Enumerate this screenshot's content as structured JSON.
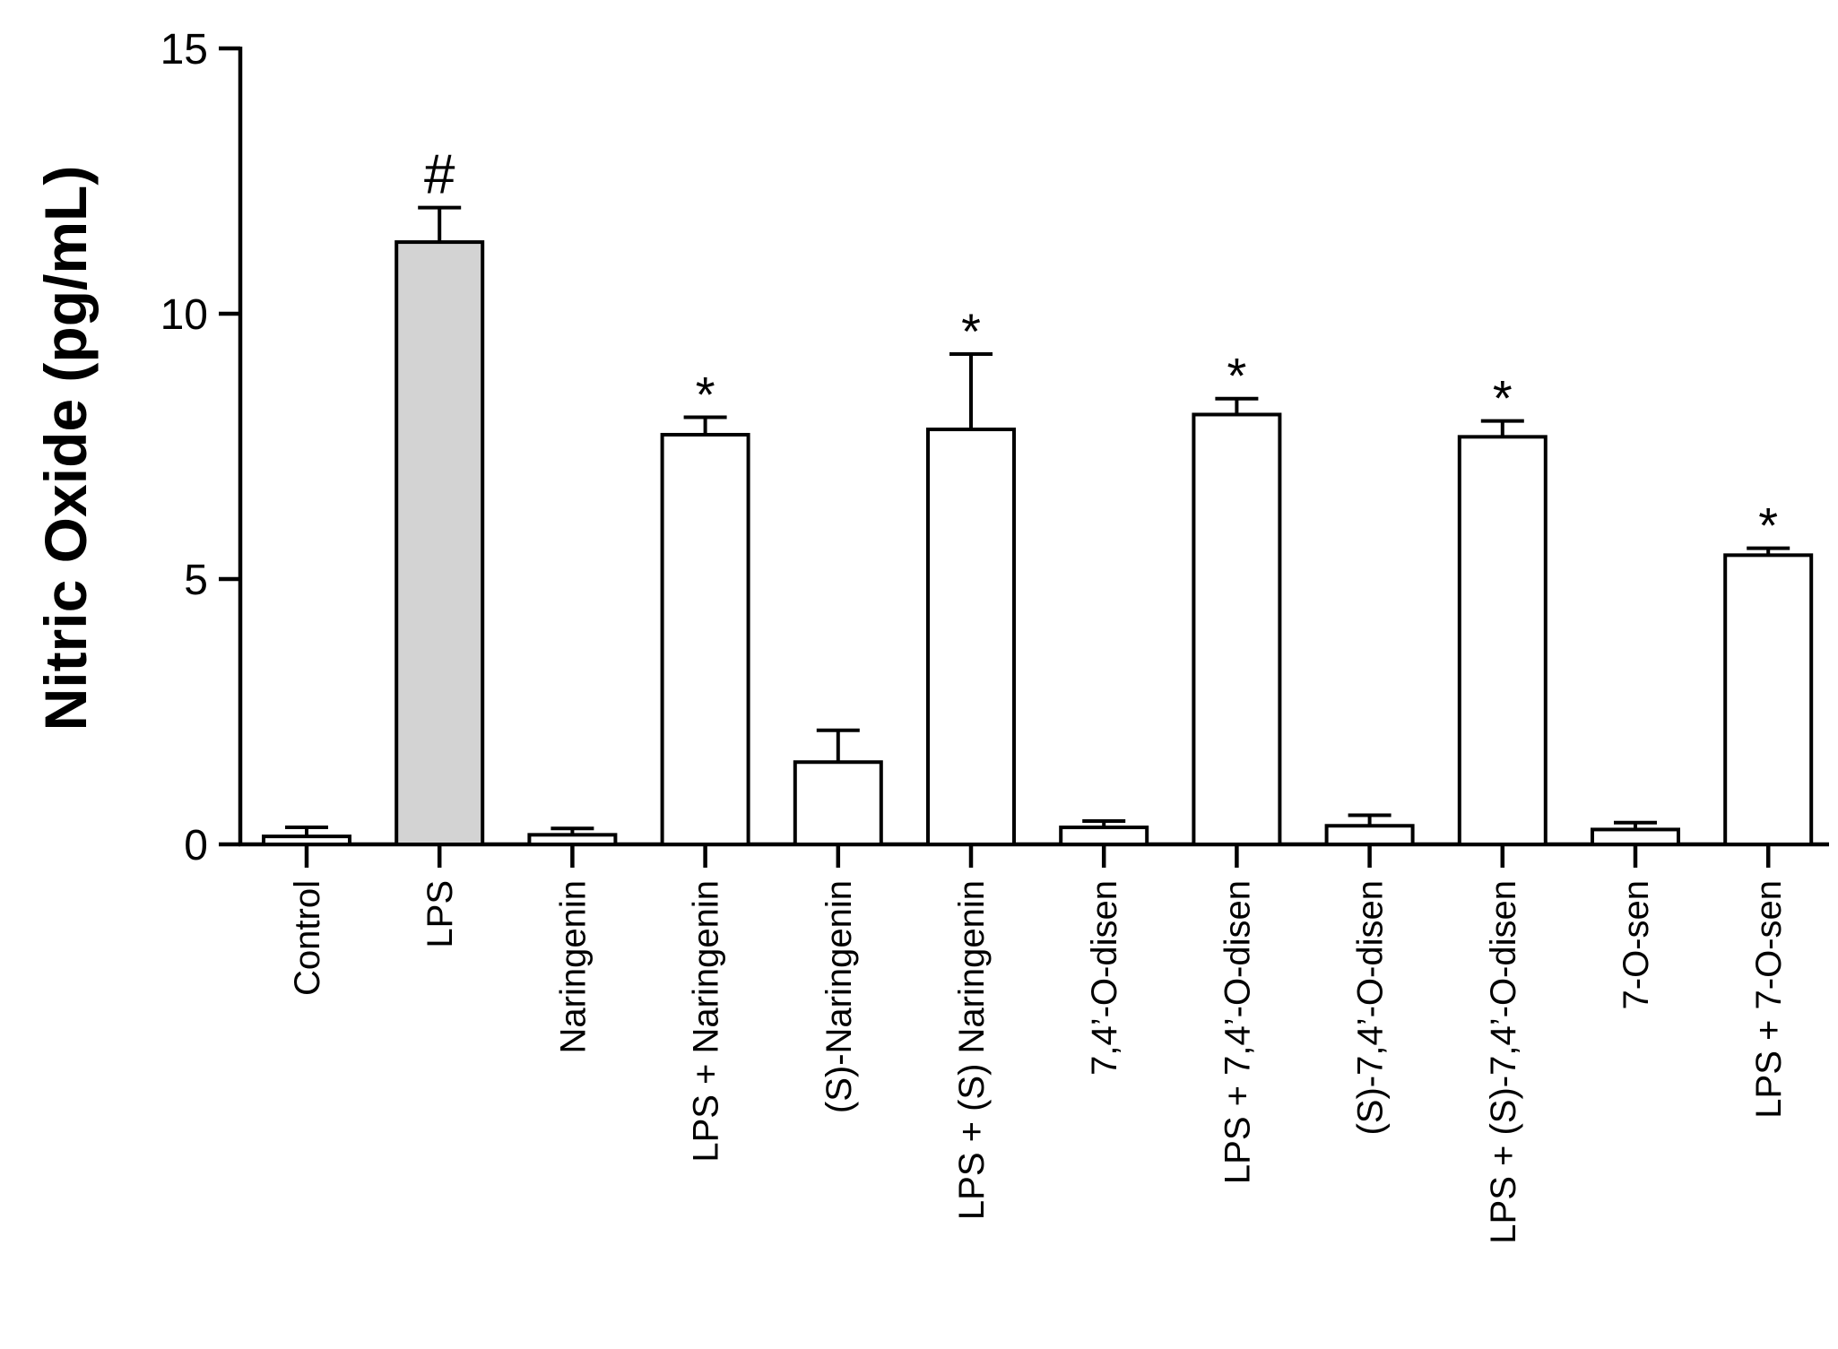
{
  "chart_data": {
    "type": "bar",
    "title": "",
    "xlabel": "",
    "ylabel": "Nitric Oxide (pg/mL)",
    "ylim": [
      0,
      15
    ],
    "yticks": [
      0,
      5,
      10,
      15
    ],
    "grid": false,
    "categories": [
      "Control",
      "LPS",
      "Naringenin",
      "LPS + Naringenin",
      "(S)-Naringenin",
      "LPS + (S) Naringenin",
      "7,4’-O-disen",
      "LPS + 7,4’-O-disen",
      "(S)-7,4’-O-disen",
      "LPS + (S)-7,4’-O-disen",
      "7-O-sen",
      "LPS + 7-O-sen"
    ],
    "values": [
      0.15,
      11.35,
      0.18,
      7.72,
      1.55,
      7.82,
      0.32,
      8.1,
      0.35,
      7.68,
      0.28,
      5.45
    ],
    "errors": [
      0.17,
      0.65,
      0.12,
      0.33,
      0.6,
      1.42,
      0.12,
      0.3,
      0.2,
      0.3,
      0.13,
      0.13
    ],
    "annotations": [
      "",
      "#",
      "",
      "*",
      "",
      "*",
      "",
      "*",
      "",
      "*",
      "",
      "*"
    ],
    "colors": {
      "highlight_fill": "#d3d3d3",
      "default_fill": "#ffffff",
      "stroke": "#000000"
    },
    "highlight_index": 1
  }
}
